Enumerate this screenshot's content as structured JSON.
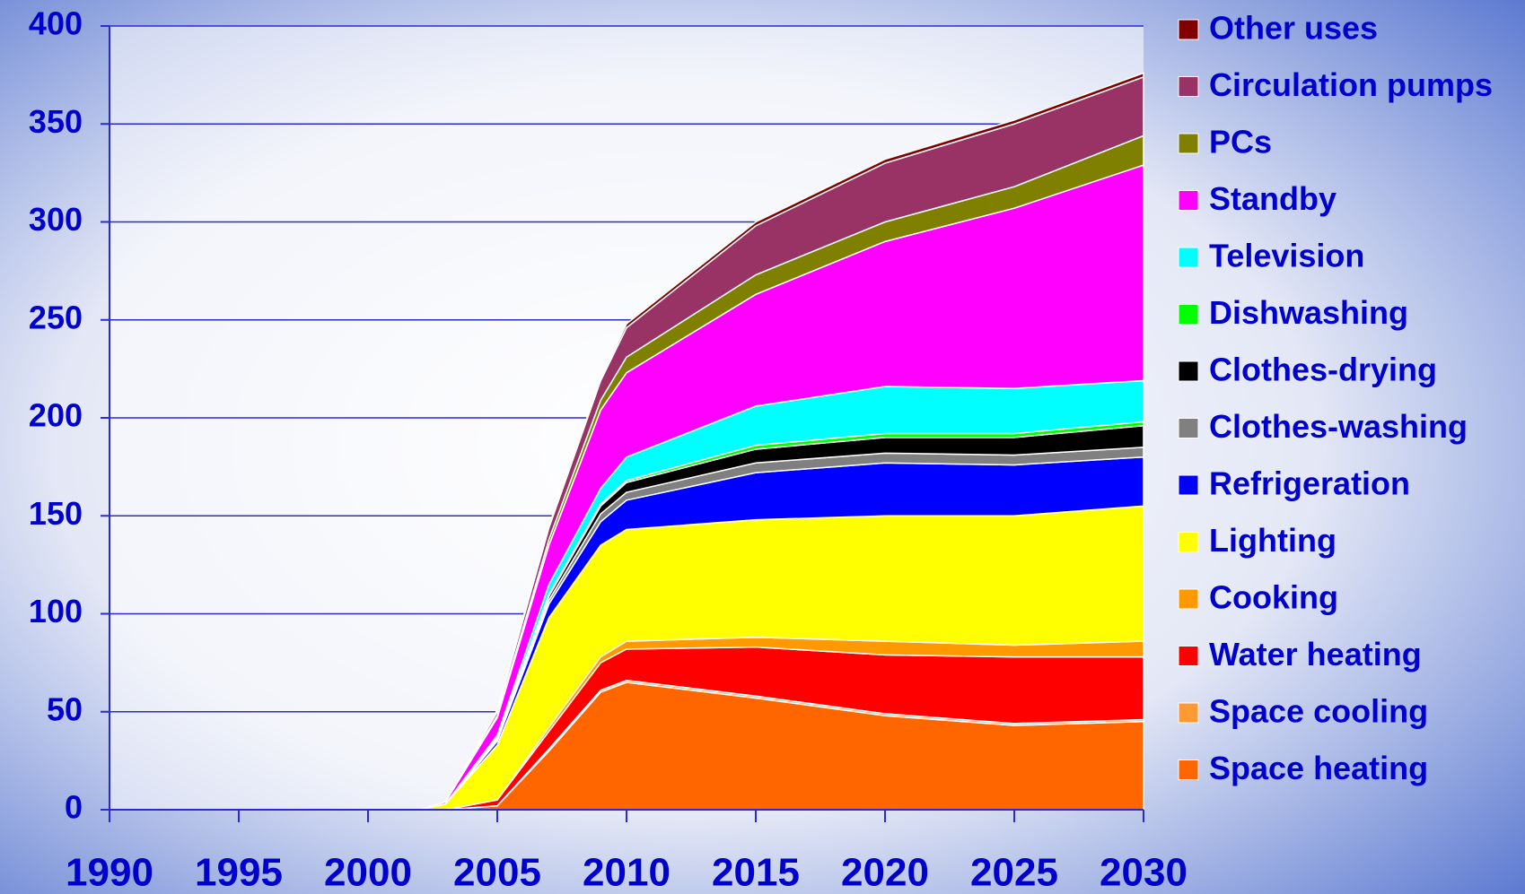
{
  "chart_data": {
    "type": "stacked_area",
    "x": [
      2002,
      2003,
      2005,
      2007,
      2009,
      2010,
      2015,
      2020,
      2025,
      2030
    ],
    "xlim": [
      1990,
      2030
    ],
    "xticks": [
      1990,
      1995,
      2000,
      2005,
      2010,
      2015,
      2020,
      2025,
      2030
    ],
    "ylim": [
      0,
      400
    ],
    "yticks": [
      0,
      50,
      100,
      150,
      200,
      250,
      300,
      350,
      400
    ],
    "grid": true,
    "legend": "right",
    "series": [
      {
        "name": "Space heating",
        "color": "#ff6600",
        "values": [
          0,
          0,
          2,
          30,
          60,
          65,
          57,
          48,
          43,
          45
        ]
      },
      {
        "name": "Space cooling",
        "color": "#ff9933",
        "values": [
          0,
          0,
          0,
          1,
          1,
          1,
          1,
          1,
          1,
          1
        ]
      },
      {
        "name": "Water heating",
        "color": "#ff0000",
        "values": [
          0,
          0,
          3,
          9,
          14,
          16,
          25,
          30,
          34,
          32
        ]
      },
      {
        "name": "Cooking",
        "color": "#ff9900",
        "values": [
          0,
          0,
          0,
          2,
          3,
          4,
          5,
          7,
          6,
          8
        ]
      },
      {
        "name": "Lighting",
        "color": "#ffff00",
        "values": [
          0,
          3,
          28,
          56,
          57,
          57,
          60,
          64,
          66,
          69
        ]
      },
      {
        "name": "Refrigeration",
        "color": "#0000ff",
        "values": [
          0,
          0,
          2,
          7,
          12,
          15,
          24,
          27,
          26,
          25
        ]
      },
      {
        "name": "Clothes-washing",
        "color": "#808080",
        "values": [
          0,
          0,
          1,
          2,
          4,
          4,
          5,
          5,
          5,
          5
        ]
      },
      {
        "name": "Clothes-drying",
        "color": "#000000",
        "values": [
          0,
          0,
          1,
          2,
          4,
          5,
          7,
          8,
          9,
          11
        ]
      },
      {
        "name": "Dishwashing",
        "color": "#00ff00",
        "values": [
          0,
          0,
          0,
          1,
          1,
          1,
          2,
          2,
          2,
          2
        ]
      },
      {
        "name": "Television",
        "color": "#00ffff",
        "values": [
          0,
          0,
          1,
          5,
          8,
          12,
          20,
          24,
          23,
          21
        ]
      },
      {
        "name": "Standby",
        "color": "#ff00ff",
        "values": [
          0,
          1,
          9,
          20,
          40,
          43,
          57,
          74,
          92,
          110
        ]
      },
      {
        "name": "PCs",
        "color": "#808000",
        "values": [
          0,
          0,
          1,
          3,
          5,
          8,
          10,
          10,
          11,
          15
        ]
      },
      {
        "name": "Circulation pumps",
        "color": "#993366",
        "values": [
          0,
          0,
          2,
          6,
          10,
          15,
          25,
          30,
          32,
          30
        ]
      },
      {
        "name": "Other uses",
        "color": "#800000",
        "values": [
          0,
          0,
          1,
          1,
          1,
          2,
          2,
          2,
          2,
          2
        ]
      }
    ]
  }
}
